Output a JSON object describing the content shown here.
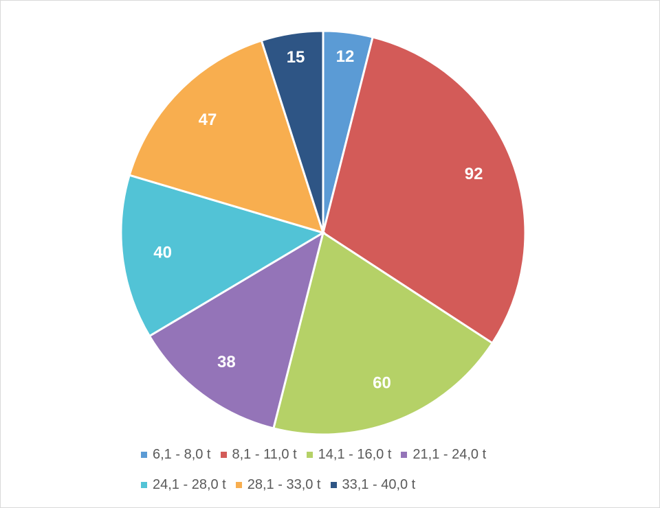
{
  "chart_data": {
    "type": "pie",
    "categories": [
      "6,1 - 8,0 t",
      "8,1 - 11,0 t",
      "14,1 - 16,0 t",
      "21,1 - 24,0 t",
      "24,1 - 28,0 t",
      "28,1 - 33,0 t",
      "33,1 - 40,0 t"
    ],
    "values": [
      12,
      92,
      60,
      38,
      40,
      47,
      15
    ],
    "value_labels": [
      "12",
      "92",
      "60",
      "38",
      "40",
      "47",
      "15"
    ],
    "colors": [
      "#5b9bd5",
      "#d35b58",
      "#b5d167",
      "#9474b8",
      "#52c3d6",
      "#f8ae4f",
      "#2e5585"
    ],
    "start_angle": "12 o'clock",
    "direction": "clockwise",
    "legend": "bottom"
  }
}
